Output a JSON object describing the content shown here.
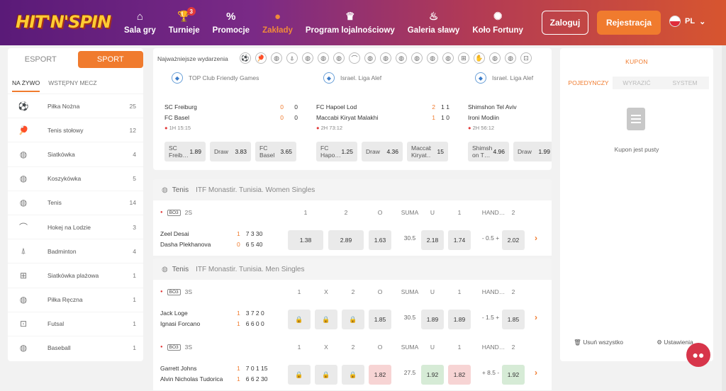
{
  "brand": {
    "logo_text": "HIT'N'SPIN"
  },
  "nav": [
    {
      "label": "Sala gry",
      "icon": "home-icon",
      "glyph": "⌂",
      "active": false
    },
    {
      "label": "Turnieje",
      "icon": "trophy-icon",
      "glyph": "🏆",
      "active": false,
      "badge": "3"
    },
    {
      "label": "Promocje",
      "icon": "percent-icon",
      "glyph": "%",
      "active": false
    },
    {
      "label": "Zakłady",
      "icon": "basketball-icon",
      "glyph": "●",
      "active": true
    },
    {
      "label": "Program lojalnościowy",
      "icon": "crown-icon",
      "glyph": "♛",
      "active": false
    },
    {
      "label": "Galeria sławy",
      "icon": "flame-icon",
      "glyph": "♨",
      "active": false
    },
    {
      "label": "Koło Fortuny",
      "icon": "wheel-icon",
      "glyph": "✺",
      "active": false
    }
  ],
  "header": {
    "login": "Zaloguj",
    "register": "Rejestracja",
    "lang": "PL"
  },
  "left": {
    "toggle": [
      "ESPORT",
      "SPORT"
    ],
    "subtabs": [
      "NA ŻYWO",
      "WSTĘPNY MECZ"
    ],
    "sports": [
      {
        "name": "Piłka Nożna",
        "count": "25",
        "glyph": "⚽"
      },
      {
        "name": "Tenis stołowy",
        "count": "12",
        "glyph": "🏓"
      },
      {
        "name": "Siatkówka",
        "count": "4",
        "glyph": "◍"
      },
      {
        "name": "Koszykówka",
        "count": "5",
        "glyph": "◍"
      },
      {
        "name": "Tenis",
        "count": "14",
        "glyph": "◍"
      },
      {
        "name": "Hokej na Lodzie",
        "count": "3",
        "glyph": "⌒"
      },
      {
        "name": "Badminton",
        "count": "4",
        "glyph": "⍋"
      },
      {
        "name": "Siatkówka plażowa",
        "count": "1",
        "glyph": "⊞"
      },
      {
        "name": "Piłka Ręczna",
        "count": "1",
        "glyph": "◍"
      },
      {
        "name": "Futsal",
        "count": "1",
        "glyph": "⊡"
      },
      {
        "name": "Baseball",
        "count": "1",
        "glyph": "◍"
      }
    ]
  },
  "featured": {
    "title": "Najważniejsze wydarzenia",
    "icons": [
      "⚽",
      "🏓",
      "◍",
      "⍋",
      "◍",
      "◍",
      "◍",
      "⌒",
      "◍",
      "◍",
      "◍",
      "◍",
      "◍",
      "◍",
      "⊞",
      "✋",
      "◍",
      "◍",
      "⊡"
    ],
    "cards": [
      {
        "league": "TOP Club Friendly Games",
        "home": "SC Freiburg",
        "away": "FC Basel",
        "hs1": "0",
        "hs2": "0",
        "as1": "0",
        "as2": "0",
        "time": "1H  15:15",
        "odds": [
          {
            "l": "SC Freib…",
            "v": "1.89"
          },
          {
            "l": "Draw",
            "v": "3.83"
          },
          {
            "l": "FC Basel",
            "v": "3.65"
          }
        ]
      },
      {
        "league": "Israel. Liga Alef",
        "home": "FC Hapoel Lod",
        "away": "Maccabi Kiryat Malakhi",
        "hs1": "2",
        "hs2": "1  1",
        "as1": "1",
        "as2": "1  0",
        "time": "2H  73:12",
        "odds": [
          {
            "l": "FC Hapo…",
            "v": "1.25"
          },
          {
            "l": "Draw",
            "v": "4.36"
          },
          {
            "l": "Maccabi Kiryat…",
            "v": "15"
          }
        ]
      },
      {
        "league": "Israel. Liga Alef",
        "home": "Shimshon Tel Aviv",
        "away": "Ironi Modiin",
        "hs1": "",
        "hs2": "",
        "as1": "",
        "as2": "",
        "time": "2H  56:12",
        "odds": [
          {
            "l": "Shimsh on T…",
            "v": "4.96"
          },
          {
            "l": "Draw",
            "v": "1.99"
          }
        ]
      }
    ]
  },
  "matches": [
    {
      "sport": "Tenis",
      "league": "ITF Monastir. Tunisia. Women Singles",
      "rows": [
        {
          "bo": "BO3",
          "set": "2S",
          "cols": [
            "1",
            "2",
            "O",
            "SUMA",
            "U",
            "1",
            "HAND…",
            "2"
          ],
          "home": "Zeel Desai",
          "away": "Dasha Plekhanova",
          "hserve": "1",
          "hscores": "7  3  30",
          "ascore0": "0",
          "ascores": "6  5  40",
          "odds": [
            "1.38",
            "2.89",
            "1.63",
            "30.5",
            "2.18",
            "1.74",
            "- 0.5 +",
            "2.02"
          ]
        }
      ]
    },
    {
      "sport": "Tenis",
      "league": "ITF Monastir. Tunisia. Men Singles",
      "rows": [
        {
          "bo": "BO3",
          "set": "3S",
          "cols": [
            "1",
            "X",
            "2",
            "O",
            "SUMA",
            "U",
            "1",
            "HAND…",
            "2"
          ],
          "home": "Jack Loge",
          "away": "Ignasi Forcano",
          "hserve": "1",
          "hscores": "3  7  2  0",
          "ascore0": "1",
          "ascores": "6  6  0  0",
          "odds": [
            "",
            "",
            "",
            "1.85",
            "30.5",
            "1.89",
            "1.89",
            "- 1.5 +",
            "1.85"
          ]
        },
        {
          "bo": "BO3",
          "set": "3S",
          "cols": [
            "1",
            "X",
            "2",
            "O",
            "SUMA",
            "U",
            "1",
            "HAND…",
            "2"
          ],
          "home": "Garrett Johns",
          "away": "Alvin Nicholas Tudorica",
          "hserve": "1",
          "hscores": "7  0  1  15",
          "ascore0": "1",
          "ascores": "6  6  2  30",
          "odds": [
            "",
            "",
            "",
            "1.82",
            "27.5",
            "1.92",
            "1.82",
            "+ 8.5 -",
            "1.92"
          ]
        }
      ]
    }
  ],
  "kupon": {
    "title": "KUPON",
    "tabs": [
      "POJEDYNCZY",
      "WYRAZIĆ",
      "SYSTEM"
    ],
    "empty": "Kupon jest pusty",
    "clear": "Usuń wszystko",
    "settings": "Ustawienia"
  }
}
